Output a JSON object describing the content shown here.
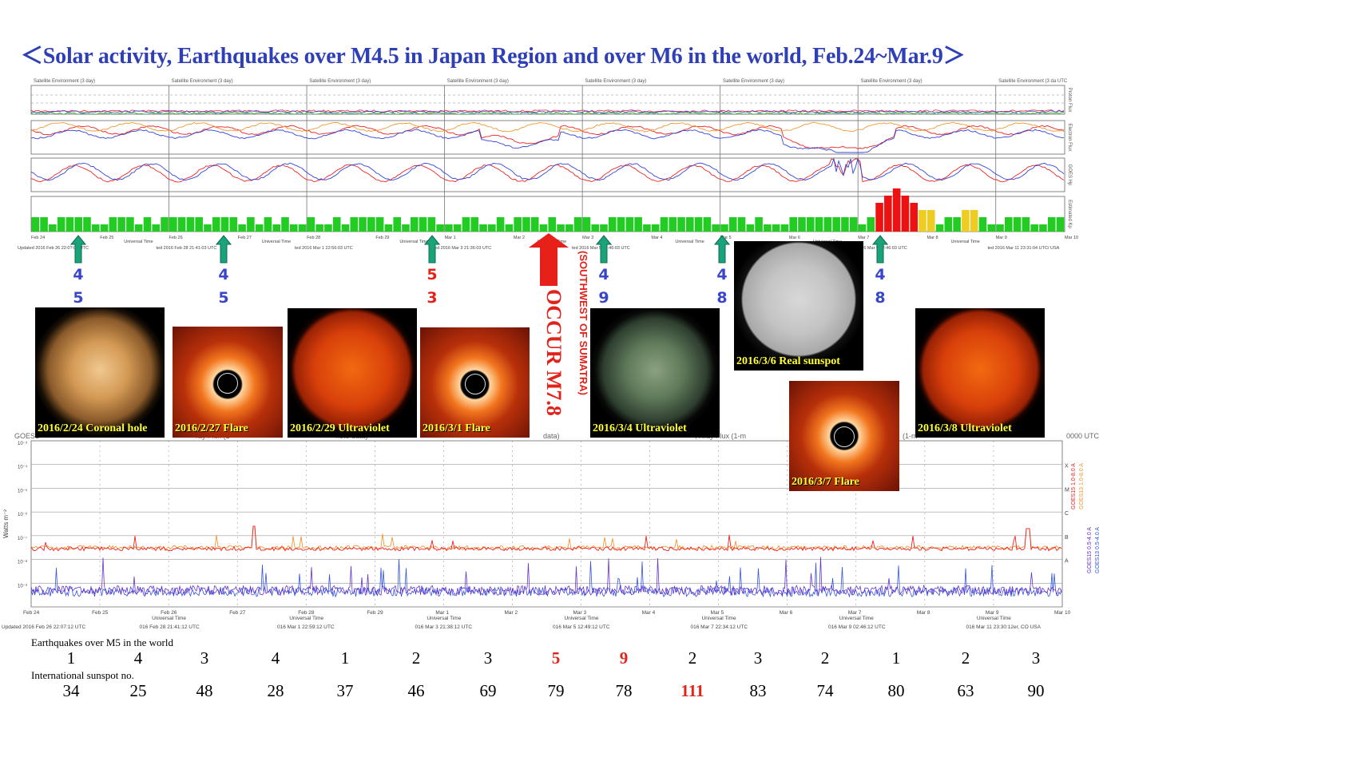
{
  "title": "＜Solar activity, Earthquakes over M4.5 in Japan Region and over M6 in the world, Feb.24~Mar.9＞",
  "top_chart": {
    "panel_headers": [
      "Satellite Environment (3 day)",
      "Satellite Environment (3 day)",
      "Satellite Environment (3 day)",
      "Satellite Environment (3 day)",
      "Satellite Environment (3 day)",
      "Satellite Environment (3 day)",
      "Satellite Environment (3 day)",
      "Satellite Environment (3 da UTC"
    ],
    "right_labels": [
      "Proton Flux",
      "Electron Flux",
      "GOES Hp",
      "Estimated Kp"
    ],
    "date_ticks": [
      "Feb 24",
      "Feb 25",
      "Feb 26",
      "Feb 27",
      "Feb 28",
      "Feb 29",
      "Mar 1",
      "Mar 2",
      "Mar 3",
      "Mar 4",
      "Mar 5",
      "Mar 6",
      "Mar 7",
      "Mar 8",
      "Mar 9",
      "Mar 10"
    ],
    "axis_label": "Universal Time",
    "updated": [
      "Updated 2016 Feb 26 22:0?:03 UTC",
      "ted 2016 Feb 28 21:41:03 UTC",
      "ted 2016 Mar  1 22:56:03 UTC",
      "ted 2016 Mar  3 21:36:03 UTC",
      "ted 2016 Mar  5 12:46:03 UTC",
      "",
      "ted 2016 Mar  9 02:46:03 UTC",
      "ted 2016 Mar 11 23:31:04 UTC/ USA"
    ]
  },
  "earthquake_markers": [
    {
      "top": "4",
      "bottom": "5",
      "color": "blue"
    },
    {
      "top": "4",
      "bottom": "5",
      "color": "blue"
    },
    {
      "top": "5",
      "bottom": "3",
      "color": "red"
    },
    {
      "top": "4",
      "bottom": "9",
      "color": "blue"
    },
    {
      "top": "4",
      "bottom": "8",
      "color": "blue"
    },
    {
      "top": "4",
      "bottom": "8",
      "color": "blue"
    }
  ],
  "major_event": {
    "line1": "OCCUR M7.8",
    "line2": "(SOUTHWEST OF SUMATRA)"
  },
  "thumbnails": [
    {
      "caption": "2016/2/24  Coronal hole"
    },
    {
      "caption": "2016/2/27 Flare"
    },
    {
      "caption": "2016/2/29 Ultraviolet"
    },
    {
      "caption": "2016/3/1 Flare"
    },
    {
      "caption": "2016/3/4 Ultraviolet"
    },
    {
      "caption": "2016/3/6 Real sunspot"
    },
    {
      "caption": "2016/3/7 Flare"
    },
    {
      "caption": "2016/3/8 Ultraviolet"
    }
  ],
  "xray_chart": {
    "header_fragments": [
      "GOES1",
      "ray Flux (1",
      "nute data)",
      "data)",
      "; Xray Flux (1-m",
      "(1-m",
      "0000 UTC"
    ],
    "ylabel": "Watts m⁻²",
    "y_ticks": [
      "10⁻³",
      "10⁻⁴",
      "10⁻⁵",
      "10⁻⁶",
      "10⁻⁷",
      "10⁻⁸",
      "10⁻⁹"
    ],
    "class_letters": [
      "X",
      "M",
      "C",
      "B",
      "A"
    ],
    "legend": [
      "GOES15 1.0-8.0 A",
      "GOES13 1.0-8.0 A",
      "GOES15 0.5-4.0 A",
      "GOES13 0.5-4.0 A"
    ],
    "date_ticks": [
      "Feb 24",
      "Feb 25",
      "Feb 26",
      "Feb 27",
      "Feb 28",
      "Feb 29",
      "Mar 1",
      "Mar 2",
      "Mar 3",
      "Mar 4",
      "Mar 5",
      "Mar 6",
      "Mar 7",
      "Mar 8",
      "Mar 9",
      "Mar 10"
    ],
    "axis_label": "Universal Time",
    "updated": [
      "Updated 2016 Feb 26 22:07:12 UTC",
      "016 Feb 28 21:41:12 UTC",
      "016 Mar  1 22:59:12 UTC",
      "016 Mar  3 21:38:12 UTC",
      "016 Mar  5 12:49:12 UTC",
      "016 Mar  7 22:34:12 UTC",
      "016 Mar  9 02:46:12 UTC",
      "016 Mar 11 23:30:12er, CO USA"
    ]
  },
  "chart_data": {
    "type": "table",
    "rows": [
      {
        "label": "Earthquakes over M5 in the world",
        "values": [
          1,
          4,
          3,
          4,
          1,
          2,
          3,
          5,
          9,
          2,
          3,
          2,
          1,
          2,
          3
        ],
        "highlight": [
          7,
          8
        ]
      },
      {
        "label": "International sunspot no.",
        "values": [
          34,
          25,
          48,
          28,
          37,
          46,
          69,
          79,
          78,
          111,
          83,
          74,
          80,
          63,
          90
        ],
        "highlight": [
          9
        ]
      }
    ],
    "estimated_kp_colors": {
      "quiet": "#22cc22",
      "active": "#eecc22",
      "storm": "#ee1111"
    }
  },
  "colors": {
    "title": "#2f3fb5",
    "arrow": "#1aa37a",
    "red": "#e0231b",
    "blue": "#3a46c9"
  }
}
